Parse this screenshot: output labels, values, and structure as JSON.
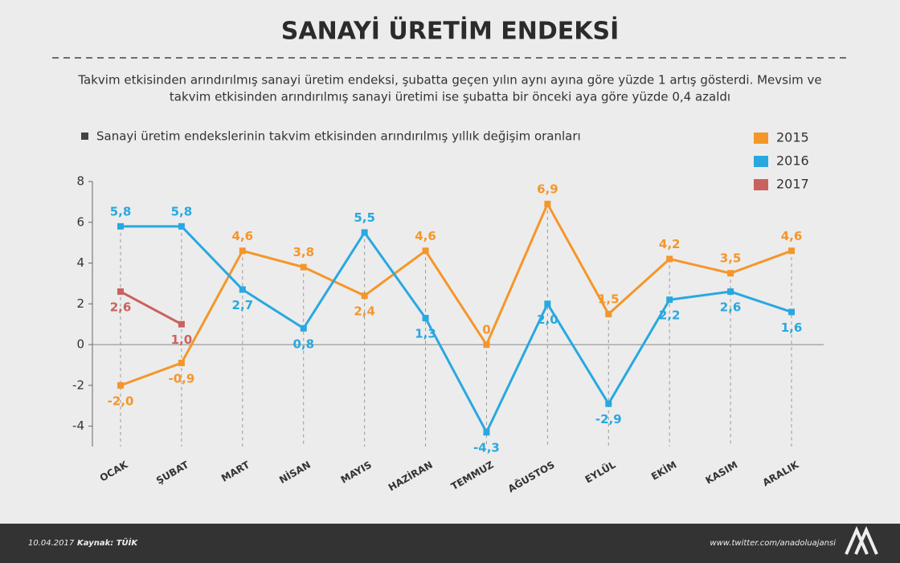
{
  "chart_data": {
    "type": "line",
    "title": "SANAYİ ÜRETİM ENDEKSİ",
    "subtitle": [
      "Takvim etkisinden arındırılmış sanayi üretim endeksi, şubatta geçen yılın aynı ayına göre yüzde 1 artış gösterdi. Mevsim ve",
      "takvim etkisinden arındırılmış sanayi üretimi ise şubatta bir önceki aya göre yüzde 0,4 azaldı"
    ],
    "note": "Sanayi üretim endekslerinin takvim etkisinden arındırılmış yıllık değişim oranları",
    "categories": [
      "OCAK",
      "ŞUBAT",
      "MART",
      "NİSAN",
      "MAYIS",
      "HAZİRAN",
      "TEMMUZ",
      "AĞUSTOS",
      "EYLÜL",
      "EKİM",
      "KASIM",
      "ARALIK"
    ],
    "series": [
      {
        "name": "2015",
        "color": "#f5962a",
        "values": [
          -2.0,
          -0.9,
          4.6,
          3.8,
          2.4,
          4.6,
          0,
          6.9,
          1.5,
          4.2,
          3.5,
          4.6
        ],
        "value_labels": [
          "-2,0",
          "-0,9",
          "4,6",
          "3,8",
          "2,4",
          "4,6",
          "0",
          "6,9",
          "1,5",
          "4,2",
          "3,5",
          "4,6"
        ]
      },
      {
        "name": "2016",
        "color": "#29a8e0",
        "values": [
          5.8,
          5.8,
          2.7,
          0.8,
          5.5,
          1.3,
          -4.3,
          2.0,
          -2.9,
          2.2,
          2.6,
          1.6
        ],
        "value_labels": [
          "5,8",
          "5,8",
          "2,7",
          "0,8",
          "5,5",
          "1,3",
          "-4,3",
          "2,0",
          "-2,9",
          "2,2",
          "2,6",
          "1,6"
        ]
      },
      {
        "name": "2017",
        "color": "#c9625f",
        "values": [
          2.6,
          1.0,
          null,
          null,
          null,
          null,
          null,
          null,
          null,
          null,
          null,
          null
        ],
        "value_labels": [
          "2,6",
          "1,0",
          null,
          null,
          null,
          null,
          null,
          null,
          null,
          null,
          null,
          null
        ]
      }
    ],
    "ylim": [
      -5,
      8
    ],
    "yticks": [
      -4,
      -2,
      0,
      2,
      4,
      6,
      8
    ],
    "footer": {
      "date": "10.04.2017",
      "source": "Kaynak: TÜİK",
      "url": "www.twitter.com/anadoluajansi"
    }
  }
}
